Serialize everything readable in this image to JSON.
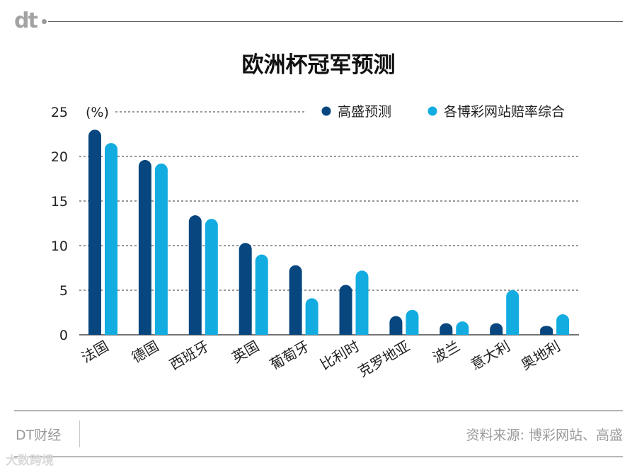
{
  "brand": {
    "logo_text": "dt"
  },
  "title": "欧洲杯冠军预测",
  "chart_data": {
    "type": "bar",
    "title": "欧洲杯冠军预测",
    "ylabel": "(%)",
    "ylim": [
      0,
      25
    ],
    "yticks": [
      0,
      5,
      10,
      15,
      20,
      25
    ],
    "grid": true,
    "legend_position": "top-right",
    "categories": [
      "法国",
      "德国",
      "西班牙",
      "英国",
      "葡萄牙",
      "比利时",
      "克罗地亚",
      "波兰",
      "意大利",
      "奥地利"
    ],
    "series": [
      {
        "name": "高盛预测",
        "color": "#07467e",
        "values": [
          23.0,
          19.6,
          13.4,
          10.3,
          7.8,
          5.6,
          2.1,
          1.3,
          1.3,
          1.0
        ]
      },
      {
        "name": "各博彩网站赔率综合",
        "color": "#12ace0",
        "values": [
          21.5,
          19.2,
          13.0,
          9.0,
          4.1,
          7.2,
          2.8,
          1.5,
          5.0,
          2.3
        ]
      }
    ]
  },
  "footer": {
    "left": "DT财经",
    "right": "资料来源: 博彩网站、高盛",
    "watermark": "大数跨境"
  }
}
